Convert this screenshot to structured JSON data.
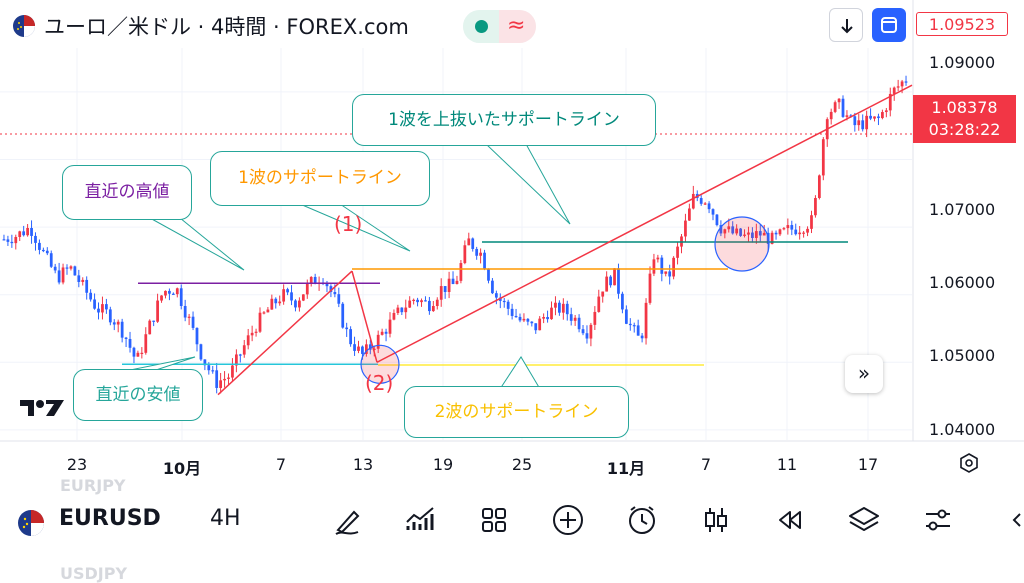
{
  "header": {
    "title": "ユーロ／米ドル · 4時間 · FOREX.com",
    "price_box": "1.09523"
  },
  "yaxis": {
    "labels": [
      "1.09000",
      "1.07000",
      "1.06000",
      "1.05000",
      "1.04000"
    ],
    "current_price": "1.08378",
    "countdown": "03:28:22"
  },
  "xaxis": {
    "labels": [
      "23",
      "10月",
      "7",
      "13",
      "19",
      "25",
      "11月",
      "7",
      "11",
      "17"
    ]
  },
  "annotations": {
    "recent_high": "直近の高値",
    "wave1_support": "1波のサポートライン",
    "wave1_break": "1波を上抜いたサポートライン",
    "recent_low": "直近の安値",
    "wave2_support": "2波のサポートライン",
    "wave1_mark": "(1)",
    "wave2_mark": "(2)"
  },
  "bottom_bar": {
    "symbol": "EURUSD",
    "interval": "4H",
    "ghost_above": "EURJPY",
    "ghost_below": "USDJPY",
    "tools": [
      "draw-icon",
      "indicators-icon",
      "layouts-icon",
      "add-icon",
      "alert-icon",
      "candles-icon",
      "replay-icon",
      "layers-icon",
      "settings-icon"
    ]
  },
  "colors": {
    "up": "#089981",
    "down": "#2962ff",
    "red": "#f23645",
    "purple": "#7b1fa2",
    "orange": "#ff9800",
    "teal": "#00897b",
    "cyan": "#26c6da",
    "yellow": "#ffeb3b"
  },
  "chart_data": {
    "type": "candlestick",
    "title": "ユーロ／米ドル · 4時間 · FOREX.com",
    "ylim": [
      1.0385,
      1.0965
    ],
    "current_price": 1.08378,
    "x_tick_labels": [
      "23",
      "10月",
      "7",
      "13",
      "19",
      "25",
      "11月",
      "7",
      "11",
      "17"
    ],
    "horizontal_levels": [
      {
        "name": "直近の高値",
        "value": 1.0617
      },
      {
        "name": "1波のサポートライン",
        "value": 1.0638
      },
      {
        "name": "1波を上抜いたサポートライン",
        "value": 1.0678
      },
      {
        "name": "直近の安値",
        "value": 1.0497
      },
      {
        "name": "2波のサポートライン",
        "value": 1.0496
      }
    ],
    "close_path": [
      1.0682,
      1.0688,
      1.07,
      1.066,
      1.0625,
      1.064,
      1.061,
      1.058,
      1.057,
      1.0545,
      1.05,
      1.0555,
      1.0605,
      1.061,
      1.056,
      1.0505,
      1.047,
      1.048,
      1.052,
      1.0555,
      1.058,
      1.06,
      1.059,
      1.0615,
      1.063,
      1.059,
      1.0535,
      1.051,
      1.053,
      1.0555,
      1.058,
      1.0595,
      1.0585,
      1.061,
      1.0615,
      1.068,
      1.066,
      1.06,
      1.058,
      1.056,
      1.055,
      1.0575,
      1.058,
      1.0565,
      1.0545,
      1.061,
      1.063,
      1.056,
      1.053,
      1.066,
      1.062,
      1.068,
      1.0745,
      1.074,
      1.07,
      1.069,
      1.0685,
      1.069,
      1.068,
      1.0695,
      1.07,
      1.071,
      1.087,
      1.088,
      1.085,
      1.0855,
      1.086,
      1.09,
      1.092
    ]
  }
}
